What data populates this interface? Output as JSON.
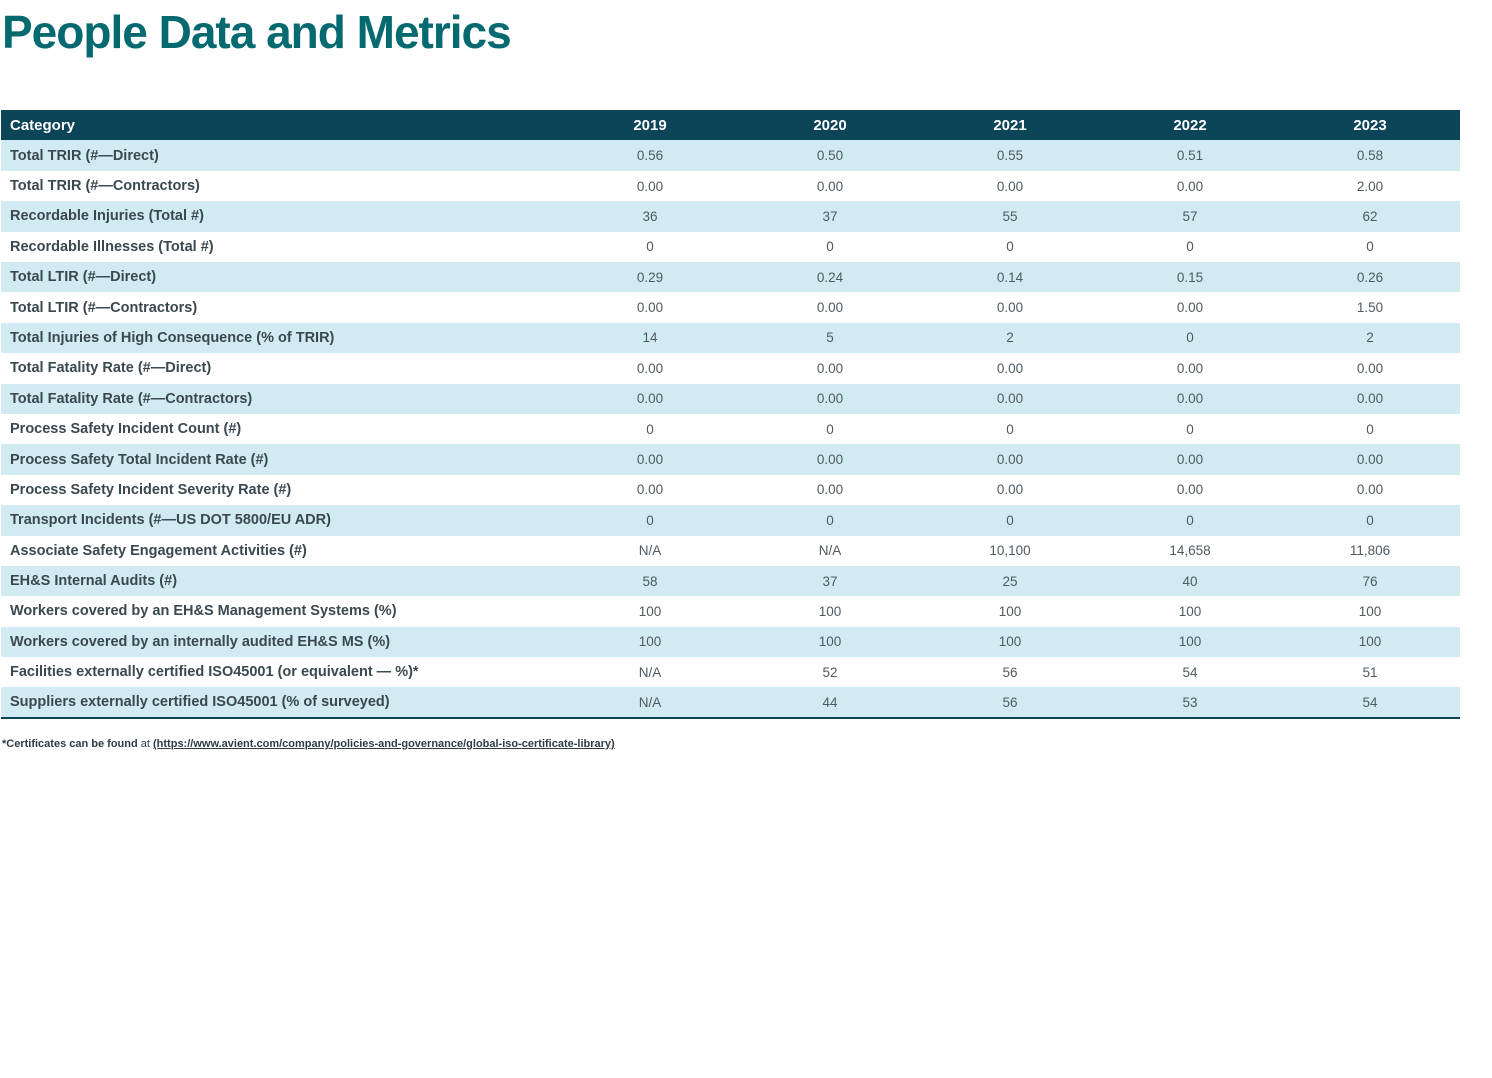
{
  "title": "People Data and Metrics",
  "colors": {
    "title_teal": "#046a70",
    "header_bg": "#0c4458",
    "row_alt_bg": "#d2ebf2",
    "label_text": "#3a4850",
    "value_text": "#4f5a62"
  },
  "table": {
    "columns": [
      "Category",
      "2019",
      "2020",
      "2021",
      "2022",
      "2023"
    ],
    "rows": [
      {
        "label": "Total TRIR (#—Direct)",
        "values": [
          "0.56",
          "0.50",
          "0.55",
          "0.51",
          "0.58"
        ]
      },
      {
        "label": "Total TRIR (#—Contractors)",
        "values": [
          "0.00",
          "0.00",
          "0.00",
          "0.00",
          "2.00"
        ]
      },
      {
        "label": "Recordable Injuries (Total #)",
        "values": [
          "36",
          "37",
          "55",
          "57",
          "62"
        ]
      },
      {
        "label": "Recordable Illnesses (Total #)",
        "values": [
          "0",
          "0",
          "0",
          "0",
          "0"
        ]
      },
      {
        "label": "Total LTIR (#—Direct)",
        "values": [
          "0.29",
          "0.24",
          "0.14",
          "0.15",
          "0.26"
        ]
      },
      {
        "label": "Total LTIR (#—Contractors)",
        "values": [
          "0.00",
          "0.00",
          "0.00",
          "0.00",
          "1.50"
        ]
      },
      {
        "label": "Total Injuries of High Consequence (% of TRIR)",
        "values": [
          "14",
          "5",
          "2",
          "0",
          "2"
        ]
      },
      {
        "label": "Total Fatality Rate (#—Direct)",
        "values": [
          "0.00",
          "0.00",
          "0.00",
          "0.00",
          "0.00"
        ]
      },
      {
        "label": "Total Fatality Rate (#—Contractors)",
        "values": [
          "0.00",
          "0.00",
          "0.00",
          "0.00",
          "0.00"
        ]
      },
      {
        "label": "Process Safety Incident Count (#)",
        "values": [
          "0",
          "0",
          "0",
          "0",
          "0"
        ]
      },
      {
        "label": "Process Safety Total Incident Rate (#)",
        "values": [
          "0.00",
          "0.00",
          "0.00",
          "0.00",
          "0.00"
        ]
      },
      {
        "label": "Process Safety Incident Severity Rate (#)",
        "values": [
          "0.00",
          "0.00",
          "0.00",
          "0.00",
          "0.00"
        ]
      },
      {
        "label": "Transport Incidents (#—US DOT 5800/EU ADR)",
        "values": [
          "0",
          "0",
          "0",
          "0",
          "0"
        ]
      },
      {
        "label": "Associate Safety Engagement Activities (#)",
        "values": [
          "N/A",
          "N/A",
          "10,100",
          "14,658",
          "11,806"
        ]
      },
      {
        "label": "EH&S Internal Audits (#)",
        "values": [
          "58",
          "37",
          "25",
          "40",
          "76"
        ]
      },
      {
        "label": "Workers covered by an EH&S Management Systems (%)",
        "values": [
          "100",
          "100",
          "100",
          "100",
          "100"
        ]
      },
      {
        "label": "Workers covered by an internally audited EH&S MS (%)",
        "values": [
          "100",
          "100",
          "100",
          "100",
          "100"
        ]
      },
      {
        "label": "Facilities externally certified ISO45001 (or equivalent — %)*",
        "values": [
          "N/A",
          "52",
          "56",
          "54",
          "51"
        ]
      },
      {
        "label": "Suppliers externally certified ISO45001 (% of surveyed)",
        "values": [
          "N/A",
          "44",
          "56",
          "53",
          "54"
        ]
      }
    ]
  },
  "footnote": {
    "bold_prefix": "*Certificates can be found",
    "connector": "at",
    "link_text": "(https://www.avient.com/company/policies-and-governance/global-iso-certificate-library)"
  }
}
